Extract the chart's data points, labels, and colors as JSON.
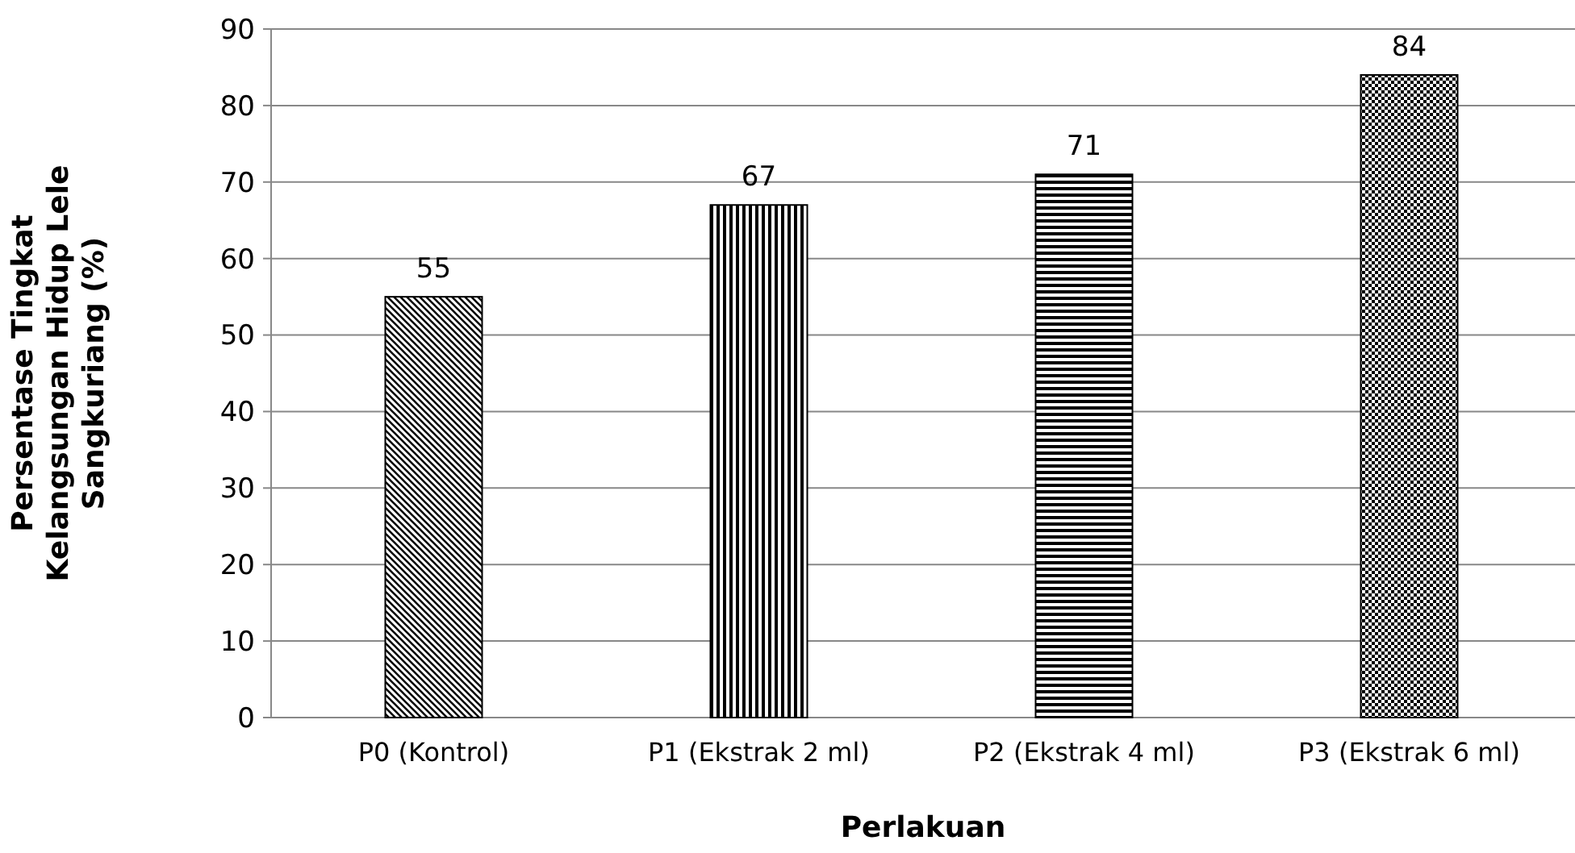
{
  "chart_data": {
    "type": "bar",
    "xlabel": "Perlakuan",
    "ylabel": "Persentase Tingkat\nKelangsungan Hidup Lele\nSangkuriang (%)",
    "categories": [
      "P0 (Kontrol)",
      "P1 (Ekstrak 2 ml)",
      "P2 (Ekstrak 4 ml)",
      "P3 (Ekstrak 6 ml)"
    ],
    "values": [
      55,
      67,
      71,
      84
    ],
    "color": "#000000",
    "ylim": [
      0,
      90
    ],
    "yticks": [
      0,
      10,
      20,
      30,
      40,
      50,
      60,
      70,
      80,
      90
    ],
    "grid": "y",
    "data_labels": true
  }
}
